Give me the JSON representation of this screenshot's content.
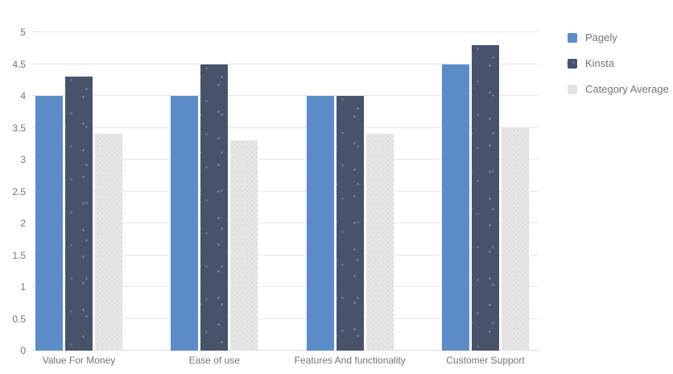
{
  "chart_data": {
    "type": "bar",
    "title": "",
    "xlabel": "",
    "ylabel": "",
    "categories": [
      "Value For Money",
      "Ease of use",
      "Features And functionality",
      "Customer Support"
    ],
    "series": [
      {
        "name": "Pagely",
        "color": "#5b8cc8",
        "texture": "solid",
        "values": [
          4.0,
          4.0,
          4.0,
          4.5
        ]
      },
      {
        "name": "Kinsta",
        "color": "#46536b",
        "texture": "sparse-dots",
        "values": [
          4.3,
          4.5,
          4.0,
          4.8
        ]
      },
      {
        "name": "Category Average",
        "color": "#e5e5e5",
        "texture": "dot-grid",
        "values": [
          3.4,
          3.3,
          3.4,
          3.5
        ]
      }
    ],
    "ylim": [
      0,
      5
    ],
    "yticks": [
      0,
      0.5,
      1,
      1.5,
      2,
      2.5,
      3,
      3.5,
      4,
      4.5,
      5
    ],
    "grid": true,
    "legend_position": "right"
  },
  "legend": {
    "items": [
      "Pagely",
      "Kinsta",
      "Category Average"
    ]
  },
  "colors": {
    "pagely": "#5b8cc8",
    "kinsta": "#46536b",
    "category_average": "#e5e5e5",
    "gridline": "#e6e6e6",
    "baseline": "#d9d9d9",
    "axis_text": "#757575",
    "legend_text": "#757575",
    "background": "#ffffff"
  }
}
